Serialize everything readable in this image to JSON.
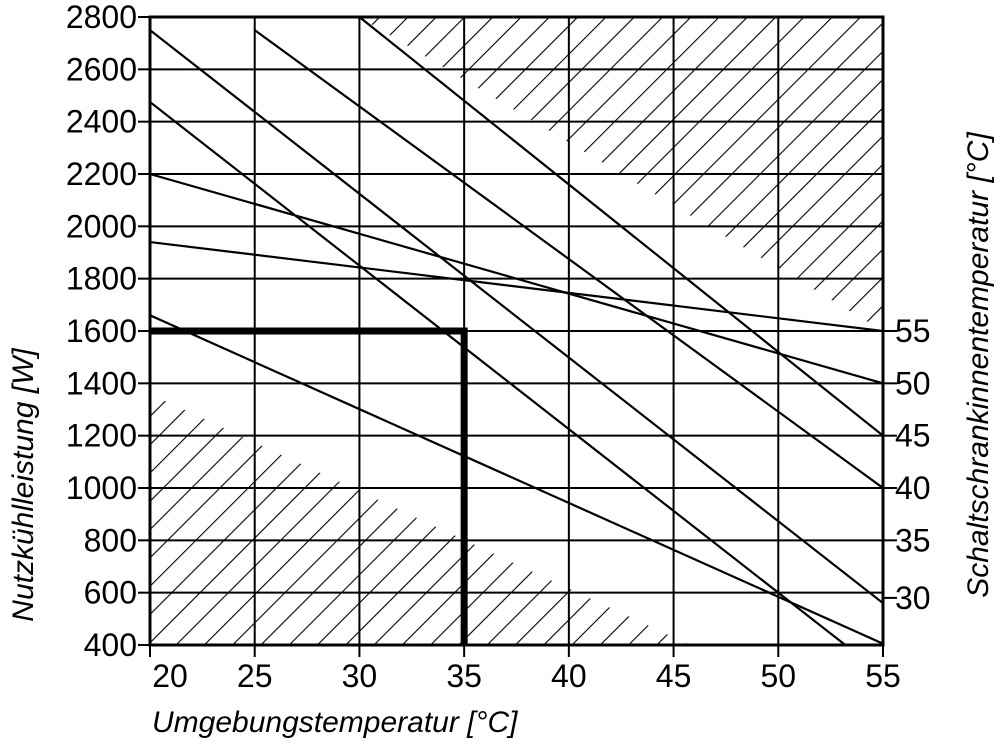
{
  "chart_data": {
    "type": "line",
    "xlabel": "Umgebungstemperatur [°C]",
    "ylabel": "Nutzkühlleistung [W]",
    "y2label": "Schaltschrankinnentemperatur [°C]",
    "xlim": [
      20,
      55
    ],
    "ylim": [
      400,
      2800
    ],
    "x_ticks": [
      "20",
      "25",
      "30",
      "35",
      "40",
      "45",
      "50",
      "55"
    ],
    "y_ticks": [
      "400",
      "600",
      "800",
      "1000",
      "1200",
      "1400",
      "1600",
      "1800",
      "2000",
      "2200",
      "2400",
      "2600",
      "2800"
    ],
    "grid": true,
    "series": [
      {
        "name": "30",
        "x": [
          20,
          53.2
        ],
        "y": [
          2475,
          400
        ]
      },
      {
        "name": "35",
        "x": [
          20,
          55
        ],
        "y": [
          2750,
          560
        ]
      },
      {
        "name": "40",
        "x": [
          25,
          55
        ],
        "y": [
          2750,
          1000
        ]
      },
      {
        "name": "45",
        "x": [
          30,
          55
        ],
        "y": [
          2800,
          1200
        ]
      },
      {
        "name": "50",
        "x": [
          20,
          55
        ],
        "y": [
          2200,
          1400
        ]
      },
      {
        "name": "55",
        "x": [
          20,
          55
        ],
        "y": [
          1940,
          1600
        ]
      }
    ],
    "extra_lines": [
      {
        "x": [
          20,
          55
        ],
        "y": [
          1660,
          405
        ]
      }
    ],
    "right_labels": [
      {
        "text": "55",
        "y": 1600
      },
      {
        "text": "50",
        "y": 1400
      },
      {
        "text": "45",
        "y": 1200
      },
      {
        "text": "40",
        "y": 1000
      },
      {
        "text": "35",
        "y": 800
      },
      {
        "text": "30",
        "y": 580
      }
    ],
    "hatched_regions": [
      {
        "name": "upper-limit-region",
        "points": [
          [
            30,
            2800
          ],
          [
            55,
            2800
          ],
          [
            55,
            1600
          ]
        ]
      },
      {
        "name": "lower-limit-region",
        "points": [
          [
            20,
            1360
          ],
          [
            45.8,
            400
          ],
          [
            20,
            400
          ]
        ]
      }
    ],
    "example_reading": {
      "x": 35,
      "y": 1600
    }
  }
}
